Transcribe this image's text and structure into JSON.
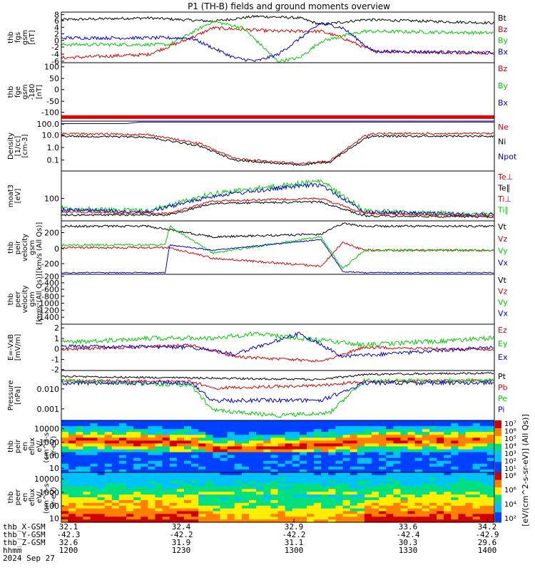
{
  "title": "P1 (TH-B) fields and ground moments overview",
  "colors": {
    "black": "#000000",
    "red": "#e00000",
    "green": "#00d000",
    "blue": "#0000e0",
    "yellow": "#ffdd00"
  },
  "chart_data": [
    {
      "type": "line",
      "id": "fgs",
      "ylabel": [
        "thb",
        "fgs",
        "gsm",
        "[nT]"
      ],
      "yticks": [
        "8",
        "6",
        "4",
        "2",
        "0",
        "-2",
        "-4",
        "-6"
      ],
      "legend": [
        {
          "text": "Bt",
          "color": "black"
        },
        {
          "text": "Bz",
          "color": "red"
        },
        {
          "text": "By",
          "color": "green"
        },
        {
          "text": "Bx",
          "color": "blue"
        }
      ]
    },
    {
      "type": "line",
      "id": "fge",
      "ylabel": [
        "thb",
        "fge",
        "gsm",
        "-180",
        "[nT]"
      ],
      "yticks": [
        "100",
        "50",
        "0",
        "-50",
        "-100"
      ],
      "legend": [
        {
          "text": "Bz",
          "color": "red"
        },
        {
          "text": "By",
          "color": "green"
        },
        {
          "text": "Bx",
          "color": "blue"
        }
      ]
    },
    {
      "type": "line",
      "id": "density",
      "ylabel": [
        "Density",
        "[1/cc]",
        "[cm-3]"
      ],
      "yticks": [
        "100.0",
        "10.0",
        "1.0",
        "0.1"
      ],
      "legend": [
        {
          "text": "Ne",
          "color": "red"
        },
        {
          "text": "Ni",
          "color": "black"
        },
        {
          "text": "Npot",
          "color": "blue"
        }
      ]
    },
    {
      "type": "line",
      "id": "temp",
      "ylabel": [
        "moat3",
        "[eV]"
      ],
      "yticks": [
        "100"
      ],
      "legend": [
        {
          "text": "Te⊥",
          "color": "red"
        },
        {
          "text": "Te∥",
          "color": "black"
        },
        {
          "text": "Ti⊥",
          "color": "red"
        },
        {
          "text": "Ti∥",
          "color": "green"
        }
      ]
    },
    {
      "type": "line",
      "id": "peir",
      "ylabel": [
        "thb",
        "peir",
        "velocity",
        "gsm",
        "[km/s (All Qs)]"
      ],
      "yticks": [
        "200",
        "0",
        "-200"
      ],
      "legend": [
        {
          "text": "Vt",
          "color": "black"
        },
        {
          "text": "Vz",
          "color": "red"
        },
        {
          "text": "Vy",
          "color": "green"
        },
        {
          "text": "Vx",
          "color": "blue"
        }
      ]
    },
    {
      "type": "line",
      "id": "peer",
      "ylabel": [
        "thb",
        "peer",
        "velocity",
        "gsm",
        "[km/s (All Qs)]"
      ],
      "yticks": [
        "-200",
        "-400",
        "-600",
        "-800",
        "-1000",
        "-1200",
        "-1400"
      ],
      "legend": [
        {
          "text": "Vt",
          "color": "black"
        },
        {
          "text": "Vz",
          "color": "red"
        },
        {
          "text": "Vy",
          "color": "green"
        },
        {
          "text": "Vx",
          "color": "blue"
        }
      ]
    },
    {
      "type": "line",
      "id": "efield",
      "ylabel": [
        "E=-VxB",
        "[mV/m]"
      ],
      "yticks": [
        "2",
        "1",
        "0",
        "-1",
        "-2"
      ],
      "legend": [
        {
          "text": "Ez",
          "color": "red"
        },
        {
          "text": "Ey",
          "color": "green"
        },
        {
          "text": "Ex",
          "color": "blue"
        }
      ]
    },
    {
      "type": "line",
      "id": "pressure",
      "ylabel": [
        "Pressure",
        "[nPa]"
      ],
      "yticks": [
        "0.010",
        "0.001"
      ],
      "legend": [
        {
          "text": "Pt",
          "color": "black"
        },
        {
          "text": "Pb",
          "color": "red"
        },
        {
          "text": "Pe",
          "color": "green"
        },
        {
          "text": "Pi",
          "color": "blue"
        }
      ]
    },
    {
      "type": "heatmap",
      "id": "peir_en",
      "ylabel": [
        "thb",
        "peir",
        "en",
        "eflux",
        "eV/",
        "(cm^2-s-",
        "sr-eV)"
      ],
      "yticks": [
        "10000",
        "1000",
        "100",
        "10"
      ],
      "colorbar": [
        "10⁷",
        "10⁶",
        "10⁵",
        "10⁴",
        "10³",
        "10²",
        "10¹"
      ]
    },
    {
      "type": "heatmap",
      "id": "peer_en",
      "ylabel": [
        "thb",
        "peer",
        "en",
        "eflux",
        "eV/",
        "(cm^2-s-",
        "sr-eV)"
      ],
      "yticks": [
        "10000",
        "1000",
        "100",
        "10"
      ],
      "colorbar": [
        "10⁸",
        "10⁶",
        "10⁴",
        "10²"
      ]
    }
  ],
  "colorbar_label": "[eV/(cm^2-s-sr-eV)] (All Qs)]",
  "x_axis": {
    "row_labels": [
      "thb_X-GSM",
      "thb_Y-GSM",
      "thb_Z-GSM",
      "hhmm"
    ],
    "date": "2024 Sep 27",
    "ticks": [
      {
        "x": "32.1",
        "y": "-42.3",
        "z": "32.6",
        "hhmm": "1200"
      },
      {
        "x": "32.4",
        "y": "-42.2",
        "z": "31.9",
        "hhmm": "1230"
      },
      {
        "x": "32.9",
        "y": "-42.2",
        "z": "31.1",
        "hhmm": "1300"
      },
      {
        "x": "33.6",
        "y": "-42.4",
        "z": "30.3",
        "hhmm": "1330"
      },
      {
        "x": "34.2",
        "y": "-42.9",
        "z": "29.6",
        "hhmm": "1400"
      }
    ]
  }
}
